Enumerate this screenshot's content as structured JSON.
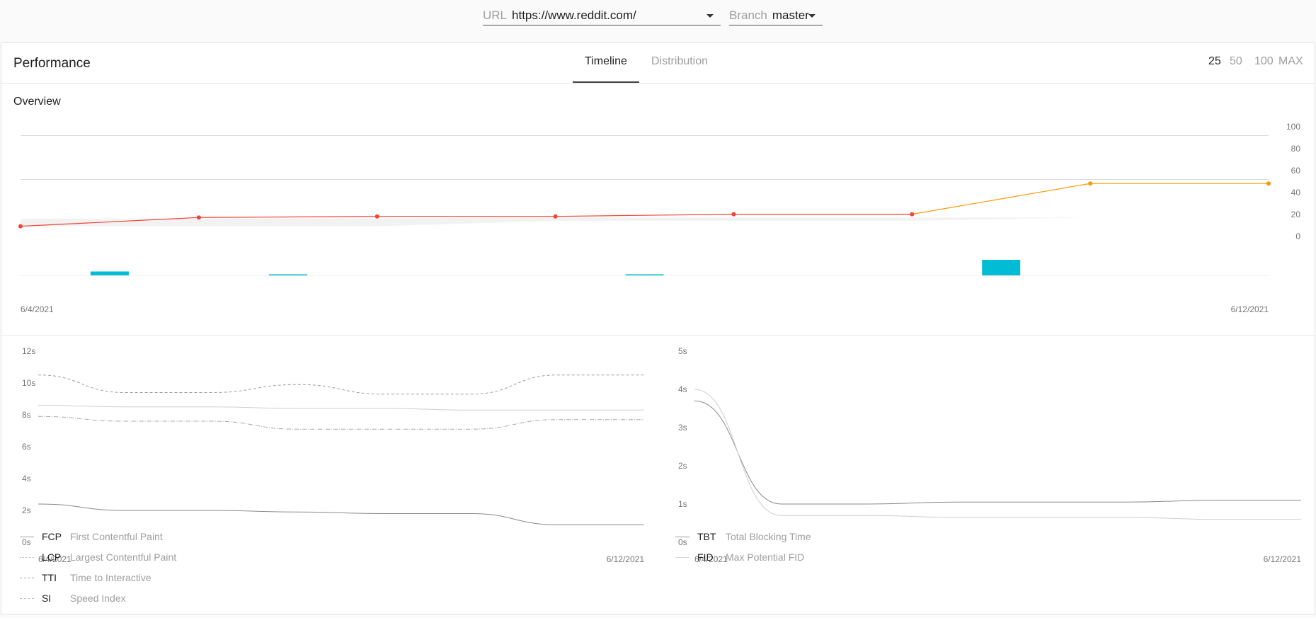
{
  "selectors": {
    "url_label": "URL",
    "url_value": "https://www.reddit.com/",
    "branch_label": "Branch",
    "branch_value": "master"
  },
  "header": {
    "title": "Performance",
    "tabs": [
      {
        "label": "Timeline",
        "active": true
      },
      {
        "label": "Distribution",
        "active": false
      }
    ],
    "ranges": [
      {
        "label": "25",
        "active": true
      },
      {
        "label": "50",
        "active": false
      },
      {
        "label": "100",
        "active": false
      },
      {
        "label": "MAX",
        "active": false
      }
    ]
  },
  "overview": {
    "title": "Overview"
  },
  "colors": {
    "score_red": "#f44336",
    "score_orange": "#ff9800",
    "bar_cyan": "#00bcd4",
    "band": "#f2f2f2",
    "metric_line": "#9e9e9e"
  },
  "chart_data": [
    {
      "type": "line",
      "x": [
        "6/4/2021",
        "",
        "",
        "",
        "",
        "",
        "",
        "6/12/2021"
      ],
      "x_tick_labels": [
        "6/4/2021",
        "6/12/2021"
      ],
      "y_tick_labels": [
        "100",
        "80",
        "60",
        "40",
        "20",
        "0"
      ],
      "ylim": [
        0,
        100
      ],
      "series": [
        {
          "values": [
            17,
            25,
            26,
            26,
            28,
            28,
            56,
            56
          ]
        }
      ],
      "band": {
        "upper": [
          24,
          24,
          24,
          25,
          25,
          25,
          25,
          25
        ],
        "lower": [
          17,
          17,
          17,
          22,
          22,
          22,
          25,
          25
        ]
      },
      "bars": {
        "values": [
          0.25,
          0.03,
          0,
          0.03,
          0,
          1,
          0
        ]
      },
      "grid": true
    },
    {
      "type": "line",
      "x_tick_labels": [
        "6/4/2021",
        "6/12/2021"
      ],
      "y_tick_labels": [
        "12s",
        "10s",
        "8s",
        "6s",
        "4s",
        "2s",
        "0s"
      ],
      "ylim": [
        0,
        12
      ],
      "legend": [
        {
          "abbr": "FCP",
          "name": "First Contentful Paint"
        },
        {
          "abbr": "LCP",
          "name": "Largest Contentful Paint"
        },
        {
          "abbr": "TTI",
          "name": "Time to Interactive"
        },
        {
          "abbr": "SI",
          "name": "Speed Index"
        }
      ],
      "series": [
        {
          "values": [
            2.4,
            2.0,
            2.0,
            1.9,
            1.8,
            1.8,
            1.1,
            1.1
          ]
        },
        {
          "values": [
            8.6,
            8.5,
            8.5,
            8.4,
            8.4,
            8.3,
            8.3,
            8.3
          ]
        },
        {
          "values": [
            10.5,
            9.4,
            9.4,
            9.9,
            9.3,
            9.3,
            10.5,
            10.5
          ]
        },
        {
          "values": [
            7.9,
            7.6,
            7.6,
            7.1,
            7.1,
            7.1,
            7.7,
            7.7
          ]
        }
      ]
    },
    {
      "type": "line",
      "x_tick_labels": [
        "6/4/2021",
        "6/12/2021"
      ],
      "y_tick_labels": [
        "5s",
        "4s",
        "3s",
        "2s",
        "1s",
        "0s"
      ],
      "ylim": [
        0,
        5
      ],
      "legend": [
        {
          "abbr": "TBT",
          "name": "Total Blocking Time"
        },
        {
          "abbr": "FID",
          "name": "Max Potential FID"
        }
      ],
      "series": [
        {
          "values": [
            3.7,
            1.0,
            1.0,
            1.05,
            1.05,
            1.05,
            1.1,
            1.1
          ]
        },
        {
          "values": [
            4.0,
            0.7,
            0.7,
            0.65,
            0.65,
            0.65,
            0.6,
            0.6
          ]
        }
      ]
    }
  ]
}
